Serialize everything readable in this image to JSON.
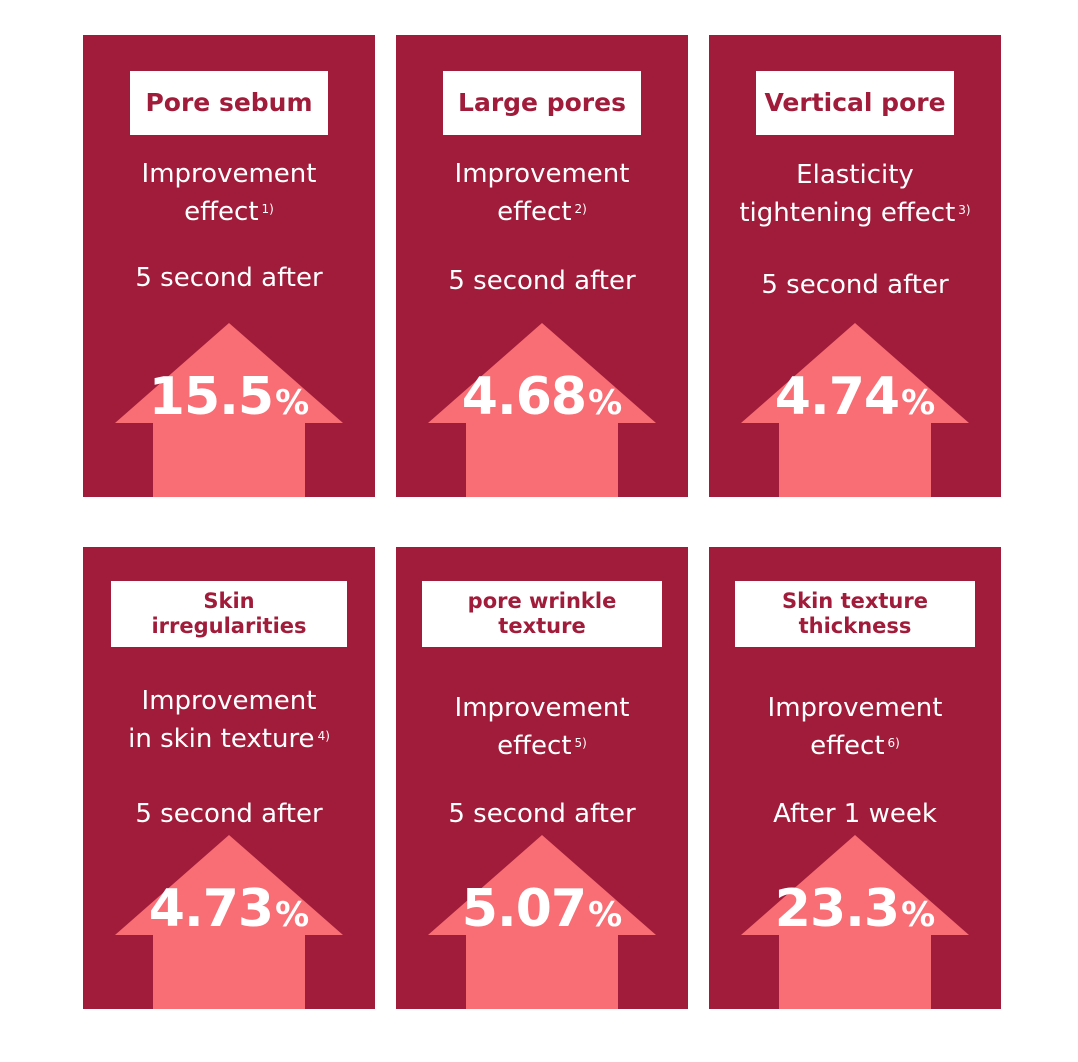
{
  "colors": {
    "card": "#a01c3a",
    "arrow": "#f96d74",
    "label_bg": "#ffffff",
    "text": "#ffffff"
  },
  "cards": [
    {
      "label": "Pore sebum",
      "desc_line1": "Improvement",
      "desc_line2": "effect",
      "note": "1)",
      "when": "5 second after",
      "value": "15.5",
      "unit": "%"
    },
    {
      "label": "Large pores",
      "desc_line1": "Improvement",
      "desc_line2": "effect",
      "note": "2)",
      "when": "5 second after",
      "value": "4.68",
      "unit": "%"
    },
    {
      "label": "Vertical pore",
      "desc_line1": "Elasticity",
      "desc_line2": "tightening effect",
      "note": "3)",
      "when": "5 second after",
      "value": "4.74",
      "unit": "%"
    },
    {
      "label": "Skin\nirregularities",
      "desc_line1": "Improvement",
      "desc_line2": "in skin texture",
      "note": "4)",
      "when": "5 second after",
      "value": "4.73",
      "unit": "%"
    },
    {
      "label": "pore wrinkle\ntexture",
      "desc_line1": "Improvement",
      "desc_line2": "effect",
      "note": "5)",
      "when": "5 second after",
      "value": "5.07",
      "unit": "%"
    },
    {
      "label": "Skin texture\nthickness",
      "desc_line1": "Improvement",
      "desc_line2": "effect",
      "note": "6)",
      "when": "After 1 week",
      "value": "23.3",
      "unit": "%"
    }
  ]
}
